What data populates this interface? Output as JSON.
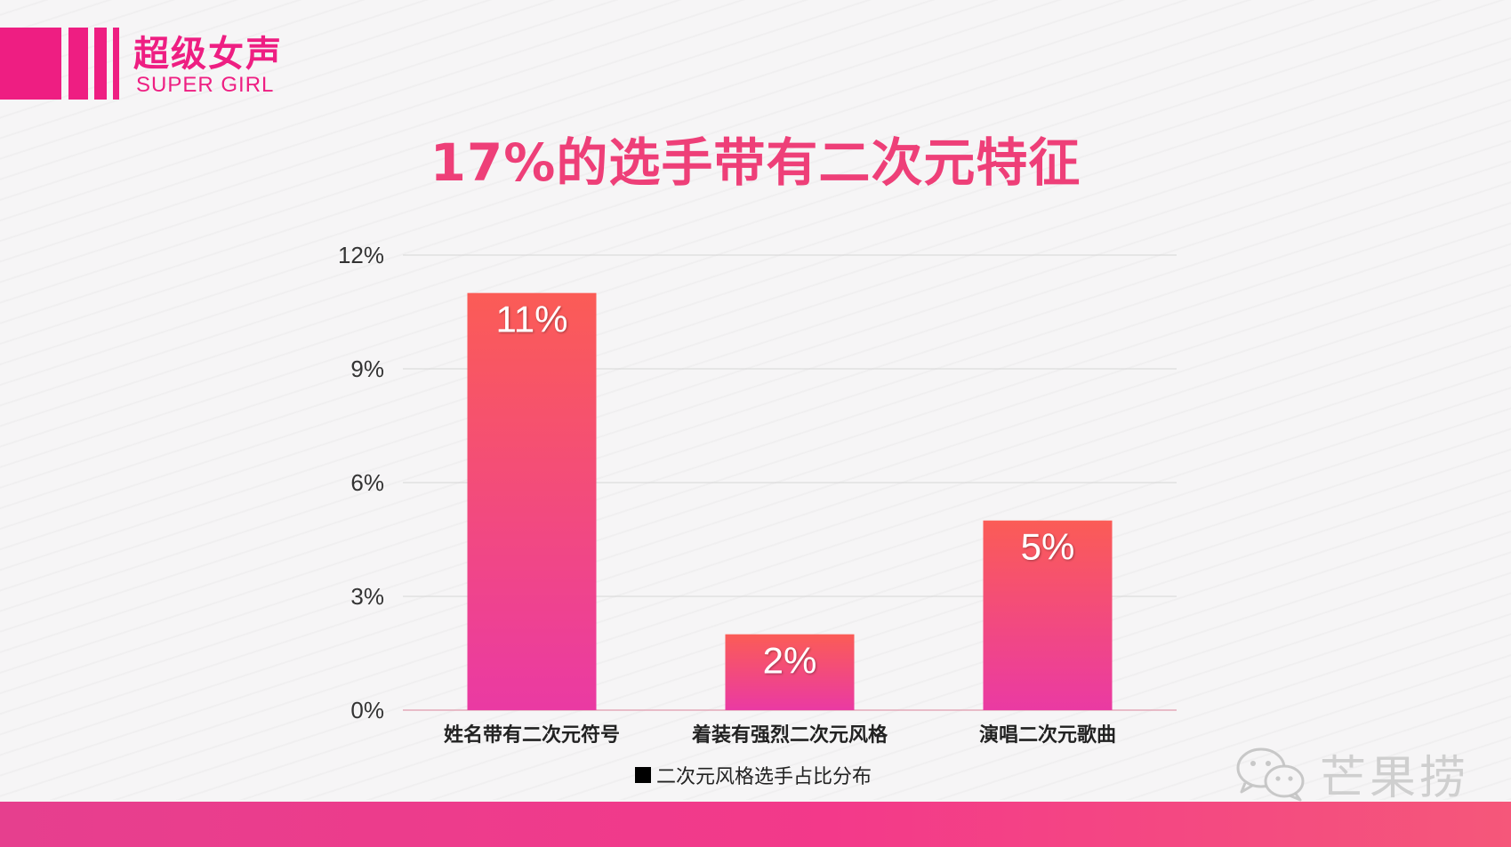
{
  "brand": {
    "name_cn": "超级女声",
    "name_en": "SUPER GIRL",
    "colors": {
      "accent": "#ee1e82",
      "title": "#ee3f78",
      "bar_top": "#fb5c56",
      "bar_bottom": "#ea3aa3"
    }
  },
  "watermark": {
    "text": "芒果捞",
    "icon": "wechat-icon"
  },
  "chart_data": {
    "type": "bar",
    "title": "17%的选手带有二次元特征",
    "categories": [
      "姓名带有二次元符号",
      "着装有强烈二次元风格",
      "演唱二次元歌曲"
    ],
    "series": [
      {
        "name": "二次元风格选手占比分布",
        "values": [
          11,
          2,
          5
        ]
      }
    ],
    "value_labels": [
      "11%",
      "2%",
      "5%"
    ],
    "yticks": [
      "0%",
      "3%",
      "6%",
      "9%",
      "12%"
    ],
    "ytick_values": [
      0,
      3,
      6,
      9,
      12
    ],
    "ylim": [
      0,
      12
    ],
    "xlabel": "",
    "ylabel": "",
    "grid": true,
    "legend": "bottom"
  }
}
